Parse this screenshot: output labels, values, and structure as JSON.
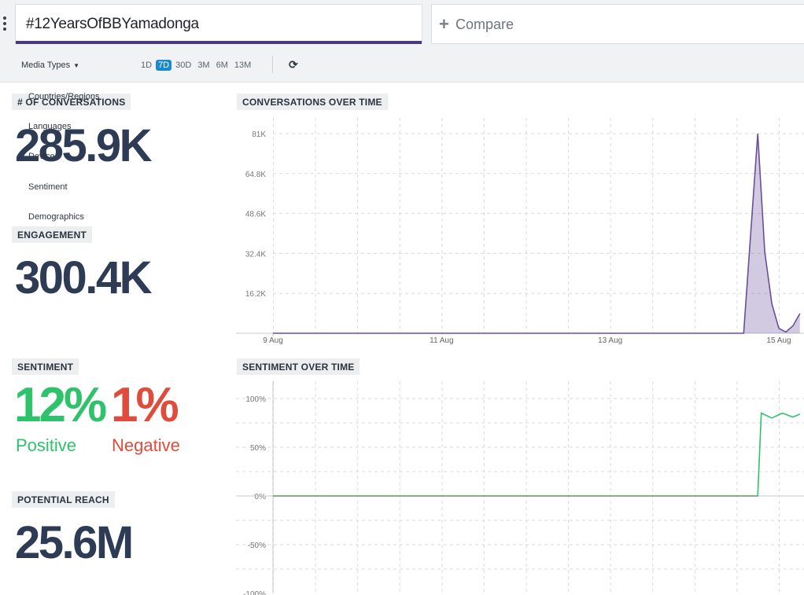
{
  "search": {
    "query": "#12YearsOfBBYamadonga"
  },
  "compare": {
    "label": "Compare"
  },
  "filters": {
    "media_types": "Media Types",
    "ranges": [
      "1D",
      "7D",
      "30D",
      "3M",
      "6M",
      "13M"
    ],
    "active_range": "7D",
    "dropdown_items": [
      "Countries/Regions",
      "Languages",
      "Device",
      "Sentiment",
      "Demographics"
    ]
  },
  "metrics": {
    "conversations": {
      "label": "# OF CONVERSATIONS",
      "value": "285.9K"
    },
    "engagement": {
      "label": "ENGAGEMENT",
      "value": "300.4K"
    },
    "sentiment": {
      "label": "SENTIMENT",
      "positive_value": "12%",
      "positive_label": "Positive",
      "negative_value": "1%",
      "negative_label": "Negative"
    },
    "reach": {
      "label": "POTENTIAL REACH",
      "value": "25.6M"
    }
  },
  "colors": {
    "accent_underline": "#4b3a78",
    "conversations_line": "#6a4f9a",
    "positive": "#2ec26a",
    "negative": "#e04b3b",
    "active_range": "#1b8ac9"
  },
  "chart_data": [
    {
      "type": "area",
      "title": "CONVERSATIONS OVER TIME",
      "x_ticks": [
        "9 Aug",
        "11 Aug",
        "13 Aug",
        "15 Aug"
      ],
      "y_ticks": [
        "16.2K",
        "32.4K",
        "48.6K",
        "64.8K",
        "81K"
      ],
      "ylim": [
        0,
        81000
      ],
      "series": [
        {
          "x": [
            "9 Aug 00:00",
            "14 Aug 14:00",
            "14 Aug 18:00",
            "14 Aug 20:00",
            "14 Aug 22:00",
            "15 Aug 00:00",
            "15 Aug 02:00",
            "15 Aug 04:00",
            "15 Aug 06:00"
          ],
          "values": [
            0,
            0,
            81000,
            33000,
            12000,
            2000,
            500,
            3000,
            8000
          ]
        }
      ]
    },
    {
      "type": "area",
      "title": "SENTIMENT OVER TIME",
      "y_ticks": [
        "100%",
        "50%",
        "0%",
        "-50%",
        "-100%"
      ],
      "ylim": [
        -100,
        100
      ],
      "series": [
        {
          "x": [
            "9 Aug 00:00",
            "14 Aug 18:00",
            "14 Aug 19:00",
            "14 Aug 22:00",
            "15 Aug 01:00",
            "15 Aug 04:00",
            "15 Aug 06:00"
          ],
          "values": [
            0,
            0,
            85,
            80,
            85,
            81,
            84
          ]
        }
      ]
    }
  ]
}
